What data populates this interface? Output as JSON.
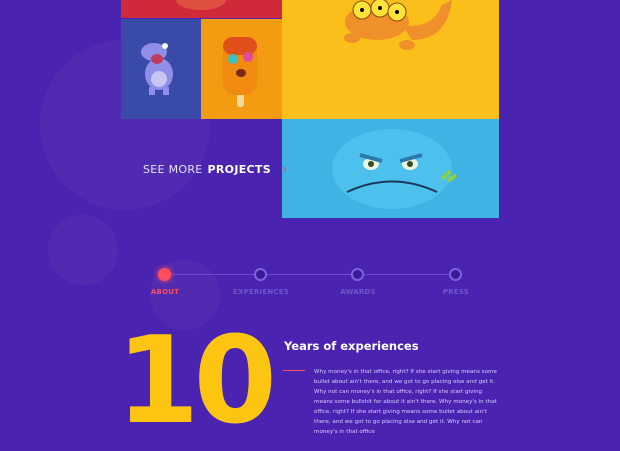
{
  "projects": {
    "tiles": [
      {
        "name": "red",
        "color": "#d02a3a"
      },
      {
        "name": "hippo",
        "color": "#3a4aa8"
      },
      {
        "name": "popsicle",
        "color": "#f39c12"
      },
      {
        "name": "three-eyed-lizard",
        "color": "#fbbf1c"
      },
      {
        "name": "angry-face",
        "color": "#3fb3e3"
      }
    ],
    "see_more_prefix": "SEE MORE",
    "see_more_bold": "PROJECTS",
    "chevron_icon": "chevron-right-icon"
  },
  "timeline": {
    "active_color": "#ff4d5e",
    "steps": [
      {
        "label": "ABOUT",
        "active": true
      },
      {
        "label": "EXPERIENCES",
        "active": false
      },
      {
        "label": "AWARDS",
        "active": false
      },
      {
        "label": "PRESS",
        "active": false
      }
    ]
  },
  "about": {
    "number": "10",
    "heading": "Years of experiences",
    "body": "Why money's in that office, right? If she start giving means some bullet about ain't there, and we got to go placing else and get it. Why not can money's in that office, right? If she start giving means some bullshit for about it ain't there. Why money's in that office, right? If she start giving means some bullet about ain't there, and we got to go placing else and get it. Why not can money's in that office"
  }
}
